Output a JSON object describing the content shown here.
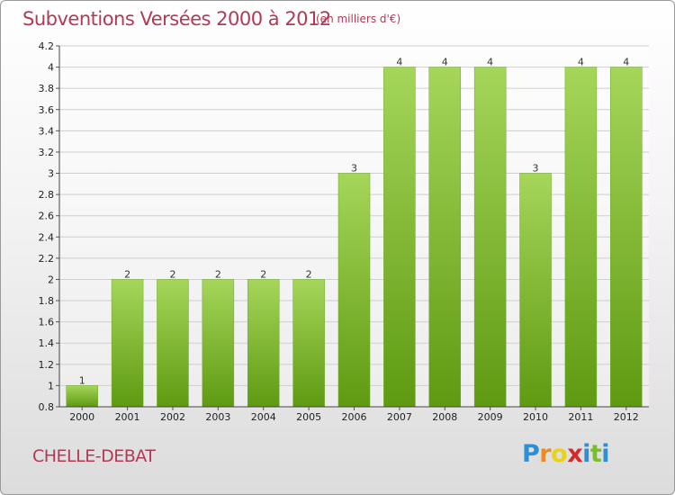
{
  "title": "Subventions Versées 2000 à 2012",
  "unit_note": "(en milliers d'€)",
  "place_name": "CHELLE-DEBAT",
  "brand": {
    "letters": [
      "P",
      "r",
      "o",
      "x",
      "i",
      "t",
      "i"
    ],
    "colors": [
      "#2d8fd6",
      "#f08a1c",
      "#e8d21a",
      "#d62a2a",
      "#2d8fd6",
      "#7bbd2a",
      "#2d8fd6"
    ]
  },
  "colors": {
    "bar_light": "#a5d65a",
    "bar_dark": "#5f9a12",
    "text_accent": "#b23a55",
    "grid": "#cfcfcf"
  },
  "chart_data": {
    "type": "bar",
    "categories": [
      "2000",
      "2001",
      "2002",
      "2003",
      "2004",
      "2005",
      "2006",
      "2007",
      "2008",
      "2009",
      "2010",
      "2011",
      "2012"
    ],
    "values": [
      1,
      2,
      2,
      2,
      2,
      2,
      3,
      4,
      4,
      4,
      3,
      4,
      4
    ],
    "data_labels": [
      "1",
      "2",
      "2",
      "2",
      "2",
      "2",
      "3",
      "4",
      "4",
      "4",
      "3",
      "4",
      "4"
    ],
    "ylim": [
      0.8,
      4.2
    ],
    "yticks": [
      0.8,
      1,
      1.2,
      1.4,
      1.6,
      1.8,
      2,
      2.2,
      2.4,
      2.6,
      2.8,
      3,
      3.2,
      3.4,
      3.6,
      3.8,
      4,
      4.2
    ],
    "ytick_labels": [
      "0.8",
      "1",
      "1.2",
      "1.4",
      "1.6",
      "1.8",
      "2",
      "2.2",
      "2.4",
      "2.6",
      "2.8",
      "3",
      "3.2",
      "3.4",
      "3.6",
      "3.8",
      "4",
      "4.2"
    ],
    "grid": true,
    "legend": "none"
  }
}
